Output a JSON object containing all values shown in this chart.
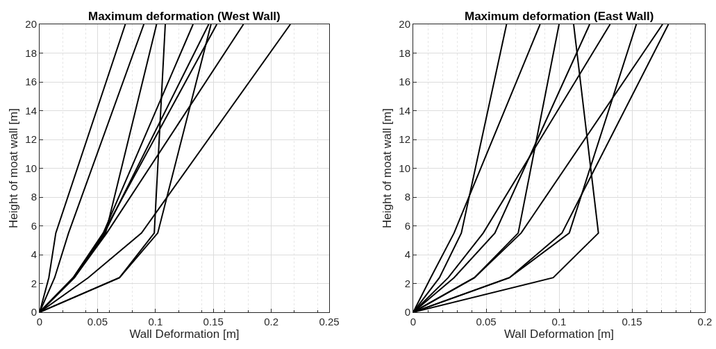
{
  "chart_data": [
    {
      "type": "line",
      "title": "Maximum deformation (West Wall)",
      "xlabel": "Wall Deformation [m]",
      "ylabel": "Height of moat wall [m]",
      "orientation": "horizontal",
      "xlim": [
        0,
        0.25
      ],
      "xticks": [
        0,
        0.05,
        0.1,
        0.15,
        0.2,
        0.25
      ],
      "ylim": [
        0,
        20
      ],
      "yticks": [
        0,
        2,
        4,
        6,
        8,
        10,
        12,
        14,
        16,
        18,
        20
      ],
      "grid": true,
      "marker": "none",
      "line_style": "solid",
      "x": [
        0,
        2.4,
        5.5,
        20
      ],
      "series": [
        {
          "color": "#000000",
          "values": [
            0,
            0.008,
            0.014,
            0.074
          ]
        },
        {
          "color": "#000000",
          "values": [
            0,
            0.013,
            0.025,
            0.09
          ]
        },
        {
          "color": "#000000",
          "values": [
            0,
            0.03,
            0.057,
            0.101
          ]
        },
        {
          "color": "#000000",
          "values": [
            0,
            0.069,
            0.099,
            0.1085
          ]
        },
        {
          "color": "#000000",
          "values": [
            0,
            0.029,
            0.055,
            0.1325
          ]
        },
        {
          "color": "#000000",
          "values": [
            0,
            0.03,
            0.056,
            0.146
          ]
        },
        {
          "color": "#000000",
          "values": [
            0,
            0.069,
            0.102,
            0.148
          ]
        },
        {
          "color": "#000000",
          "values": [
            0,
            0.029,
            0.055,
            0.153
          ]
        },
        {
          "color": "#000000",
          "values": [
            0,
            0.03,
            0.058,
            0.176
          ]
        },
        {
          "color": "#000000",
          "values": [
            0,
            0.042,
            0.088,
            0.2165
          ]
        }
      ]
    },
    {
      "type": "line",
      "title": "Maximum deformation (East Wall)",
      "xlabel": "Wall Deformation [m]",
      "ylabel": "Height of moat wall [m]",
      "orientation": "horizontal",
      "xlim": [
        0,
        0.2
      ],
      "xticks": [
        0,
        0.05,
        0.1,
        0.15,
        0.2
      ],
      "ylim": [
        0,
        20
      ],
      "yticks": [
        0,
        2,
        4,
        6,
        8,
        10,
        12,
        14,
        16,
        18,
        20
      ],
      "grid": true,
      "marker": "none",
      "line_style": "solid",
      "x": [
        0,
        2.4,
        5.5,
        20
      ],
      "series": [
        {
          "color": "#000000",
          "values": [
            0,
            0.018,
            0.033,
            0.064
          ]
        },
        {
          "color": "#000000",
          "values": [
            0,
            0.012,
            0.028,
            0.087
          ]
        },
        {
          "color": "#000000",
          "values": [
            0,
            0.042,
            0.072,
            0.1
          ]
        },
        {
          "color": "#000000",
          "values": [
            0,
            0.096,
            0.127,
            0.11
          ]
        },
        {
          "color": "#000000",
          "values": [
            0,
            0.028,
            0.056,
            0.121
          ]
        },
        {
          "color": "#000000",
          "values": [
            0,
            0.024,
            0.048,
            0.135
          ]
        },
        {
          "color": "#000000",
          "values": [
            0,
            0.066,
            0.107,
            0.153
          ]
        },
        {
          "color": "#000000",
          "values": [
            0,
            0.042,
            0.074,
            0.171
          ]
        },
        {
          "color": "#000000",
          "values": [
            0,
            0.066,
            0.102,
            0.175
          ]
        }
      ]
    }
  ]
}
